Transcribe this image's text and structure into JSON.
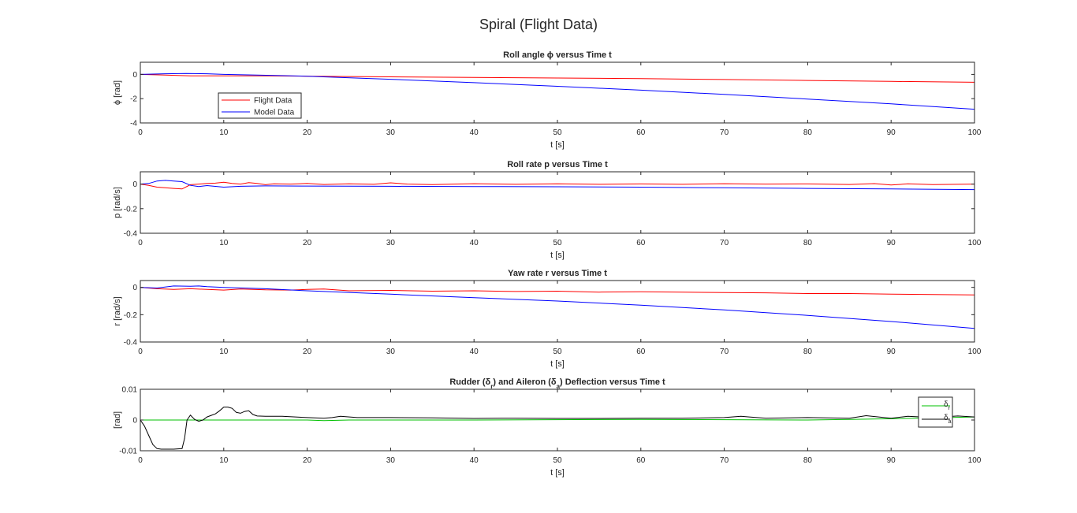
{
  "figure": {
    "title": "Spiral (Flight Data)"
  },
  "colors": {
    "flight": "#ff0000",
    "model": "#0000ff",
    "rudder": "#00c000",
    "aileron": "#000000",
    "axes": "#262626"
  },
  "chart_data": [
    {
      "type": "line",
      "title": "Roll angle ϕ versus Time t",
      "xlabel": "t [s]",
      "ylabel": "ϕ [rad]",
      "xlim": [
        0,
        100
      ],
      "ylim": [
        -4,
        1
      ],
      "xticks": [
        0,
        10,
        20,
        30,
        40,
        50,
        60,
        70,
        80,
        90,
        100
      ],
      "yticks": [
        0,
        -2,
        -4
      ],
      "ytick_labels": [
        "0",
        "-2",
        "-4"
      ],
      "grid": false,
      "legend": "bottom-left",
      "series": [
        {
          "name": "Flight Data",
          "color": "#ff0000",
          "x": [
            0,
            3,
            6,
            10,
            15,
            20,
            30,
            40,
            50,
            60,
            70,
            80,
            90,
            100
          ],
          "y": [
            0,
            -0.05,
            -0.12,
            -0.12,
            -0.12,
            -0.15,
            -0.2,
            -0.25,
            -0.3,
            -0.35,
            -0.42,
            -0.5,
            -0.58,
            -0.65
          ]
        },
        {
          "name": "Model Data",
          "color": "#0000ff",
          "x": [
            0,
            3,
            5.5,
            8,
            10,
            14,
            20,
            30,
            40,
            50,
            60,
            70,
            80,
            90,
            100
          ],
          "y": [
            0,
            0.05,
            0.08,
            0.05,
            0,
            -0.05,
            -0.15,
            -0.4,
            -0.68,
            -0.98,
            -1.3,
            -1.65,
            -2.03,
            -2.43,
            -2.87
          ]
        }
      ]
    },
    {
      "type": "line",
      "title": "Roll rate p versus Time t",
      "xlabel": "t [s]",
      "ylabel": "p [rad/s]",
      "xlim": [
        0,
        100
      ],
      "ylim": [
        -0.4,
        0.1
      ],
      "xticks": [
        0,
        10,
        20,
        30,
        40,
        50,
        60,
        70,
        80,
        90,
        100
      ],
      "yticks": [
        0,
        -0.2,
        -0.4
      ],
      "ytick_labels": [
        "0",
        "-0.2",
        "-0.4"
      ],
      "grid": false,
      "series": [
        {
          "name": "Flight Data",
          "color": "#ff0000",
          "x": [
            0,
            1,
            2,
            3,
            4,
            5,
            6,
            7,
            8,
            9,
            10,
            11,
            12,
            13,
            14,
            15,
            16,
            18,
            20,
            22,
            25,
            28,
            30,
            32,
            35,
            40,
            45,
            50,
            55,
            60,
            65,
            70,
            75,
            80,
            85,
            88,
            90,
            92,
            95,
            100
          ],
          "y": [
            0,
            -0.01,
            -0.025,
            -0.03,
            -0.035,
            -0.04,
            -0.005,
            0,
            0.005,
            0.008,
            0.015,
            0.005,
            0,
            0.012,
            0.005,
            -0.005,
            0.002,
            0,
            0.005,
            -0.003,
            0.002,
            -0.002,
            0.01,
            0,
            -0.004,
            0.003,
            -0.002,
            0.002,
            -0.002,
            0.001,
            -0.002,
            0.003,
            0,
            0.001,
            -0.003,
            0.004,
            -0.008,
            0.002,
            -0.004,
            0
          ]
        },
        {
          "name": "Model Data",
          "color": "#0000ff",
          "x": [
            0,
            1,
            2,
            3,
            4,
            5,
            6,
            7,
            8,
            10,
            12,
            15,
            20,
            30,
            40,
            50,
            60,
            70,
            80,
            90,
            100
          ],
          "y": [
            0,
            0.005,
            0.025,
            0.03,
            0.025,
            0.02,
            -0.01,
            -0.02,
            -0.012,
            -0.025,
            -0.018,
            -0.015,
            -0.016,
            -0.018,
            -0.02,
            -0.022,
            -0.025,
            -0.03,
            -0.035,
            -0.04,
            -0.045
          ]
        }
      ]
    },
    {
      "type": "line",
      "title": "Yaw rate r versus Time t",
      "xlabel": "t [s]",
      "ylabel": "r [rad/s]",
      "xlim": [
        0,
        100
      ],
      "ylim": [
        -0.4,
        0.05
      ],
      "xticks": [
        0,
        10,
        20,
        30,
        40,
        50,
        60,
        70,
        80,
        90,
        100
      ],
      "yticks": [
        0,
        -0.2,
        -0.4
      ],
      "ytick_labels": [
        "0",
        "-0.2",
        "-0.4"
      ],
      "grid": false,
      "series": [
        {
          "name": "Flight Data",
          "color": "#ff0000",
          "x": [
            0,
            2,
            4,
            6,
            8,
            10,
            12,
            15,
            18,
            20,
            22,
            25,
            30,
            35,
            40,
            45,
            50,
            55,
            60,
            65,
            70,
            75,
            80,
            85,
            90,
            95,
            100
          ],
          "y": [
            0,
            -0.01,
            -0.015,
            -0.01,
            -0.015,
            -0.02,
            -0.012,
            -0.018,
            -0.02,
            -0.015,
            -0.012,
            -0.025,
            -0.022,
            -0.028,
            -0.025,
            -0.03,
            -0.028,
            -0.035,
            -0.032,
            -0.035,
            -0.038,
            -0.04,
            -0.045,
            -0.045,
            -0.05,
            -0.052,
            -0.055
          ]
        },
        {
          "name": "Model Data",
          "color": "#0000ff",
          "x": [
            0,
            2,
            4,
            6,
            7,
            8,
            10,
            15,
            20,
            30,
            40,
            50,
            60,
            70,
            80,
            90,
            100
          ],
          "y": [
            0,
            -0.005,
            0.01,
            0.008,
            0.01,
            0.005,
            0,
            -0.01,
            -0.025,
            -0.05,
            -0.075,
            -0.1,
            -0.13,
            -0.165,
            -0.205,
            -0.25,
            -0.3
          ]
        }
      ]
    },
    {
      "type": "line",
      "title_parts": [
        "Rudder (",
        "δ",
        "r",
        ") and Aileron (",
        "δ",
        "a",
        ") Deflection versus Time t"
      ],
      "xlabel": "t [s]",
      "ylabel": "[rad]",
      "xlim": [
        0,
        100
      ],
      "ylim": [
        -0.01,
        0.01
      ],
      "xticks": [
        0,
        10,
        20,
        30,
        40,
        50,
        60,
        70,
        80,
        90,
        100
      ],
      "yticks": [
        0.01,
        0,
        -0.01
      ],
      "ytick_labels": [
        "0.01",
        "0",
        "-0.01"
      ],
      "grid": false,
      "legend": "top-right",
      "series": [
        {
          "symbol": "δ",
          "subscript": "r",
          "color": "#00c000",
          "x": [
            0,
            20,
            22,
            25,
            40,
            60,
            80,
            85,
            90,
            100
          ],
          "y": [
            0,
            0,
            -0.0002,
            0,
            0,
            0.0002,
            0,
            0.0002,
            0.0004,
            0.001
          ]
        },
        {
          "symbol": "δ",
          "subscript": "a",
          "color": "#000000",
          "x": [
            0,
            0.5,
            1,
            1.5,
            2,
            2.5,
            3,
            4,
            5,
            5.3,
            5.6,
            6,
            6.5,
            7,
            7.5,
            8,
            8.5,
            9,
            9.5,
            10,
            10.5,
            11,
            11.5,
            12,
            12.5,
            13,
            13.5,
            14,
            15,
            17,
            20,
            22,
            23,
            24,
            26,
            30,
            35,
            40,
            45,
            50,
            55,
            60,
            65,
            70,
            72,
            73,
            75,
            80,
            85,
            87,
            90,
            92,
            95,
            98,
            100
          ],
          "y": [
            0,
            -0.002,
            -0.005,
            -0.008,
            -0.0093,
            -0.0095,
            -0.0095,
            -0.0095,
            -0.0093,
            -0.006,
            0,
            0.0016,
            0.0002,
            -0.0004,
            0,
            0.001,
            0.0015,
            0.002,
            0.003,
            0.0042,
            0.0042,
            0.0038,
            0.0025,
            0.0022,
            0.0028,
            0.003,
            0.0018,
            0.0013,
            0.0012,
            0.0012,
            0.0008,
            0.0006,
            0.0008,
            0.0012,
            0.0008,
            0.0008,
            0.0007,
            0.0005,
            0.0006,
            0.0005,
            0.0005,
            0.0006,
            0.0006,
            0.0008,
            0.0012,
            0.001,
            0.0006,
            0.0008,
            0.0006,
            0.0014,
            0.0006,
            0.0012,
            0.0008,
            0.0013,
            0.001
          ]
        }
      ]
    }
  ]
}
